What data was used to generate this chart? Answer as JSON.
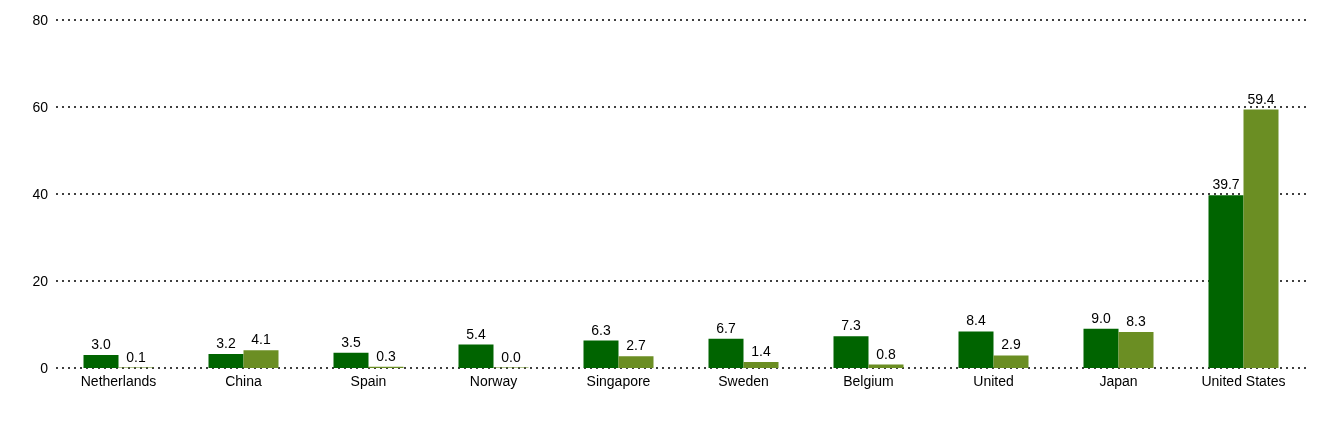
{
  "chart_data": {
    "type": "bar",
    "categories": [
      "Netherlands",
      "China",
      "Spain",
      "Norway",
      "Singapore",
      "Sweden",
      "Belgium",
      "United",
      "Japan",
      "United States"
    ],
    "series": [
      {
        "color": "#006400",
        "values": [
          3.0,
          3.2,
          3.5,
          5.4,
          6.3,
          6.7,
          7.3,
          8.4,
          9.0,
          39.7
        ],
        "value_labels": [
          "3.0",
          "3.2",
          "3.5",
          "5.4",
          "6.3",
          "6.7",
          "7.3",
          "8.4",
          "9.0",
          "39.7"
        ]
      },
      {
        "color": "#6b8e23",
        "values": [
          0.1,
          4.1,
          0.3,
          0.0,
          2.7,
          1.4,
          0.8,
          2.9,
          8.3,
          59.4
        ],
        "value_labels": [
          "0.1",
          "4.1",
          "0.3",
          "0.0",
          "2.7",
          "1.4",
          "0.8",
          "2.9",
          "8.3",
          "59.4"
        ]
      }
    ],
    "ylim": [
      0,
      80
    ],
    "yticks": [
      0,
      20,
      40,
      60,
      80
    ],
    "grid": "y",
    "legend": false
  }
}
